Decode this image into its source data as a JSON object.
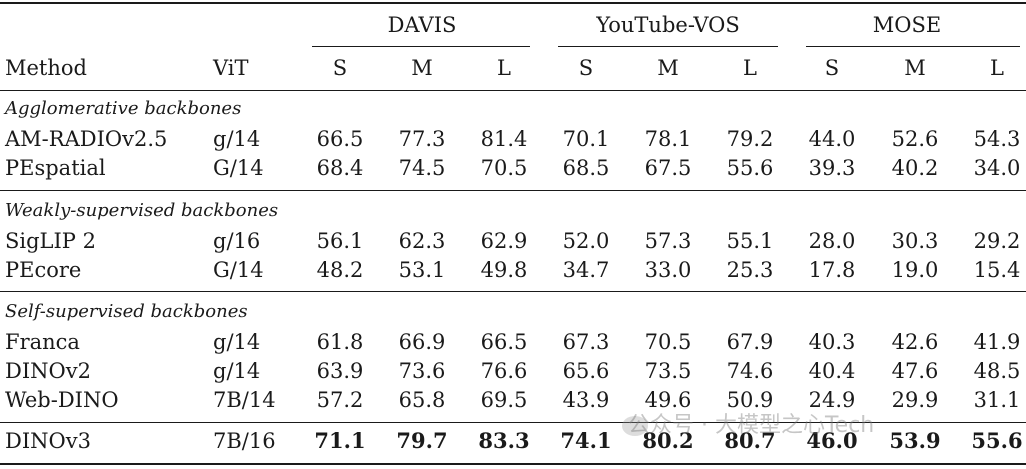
{
  "table": {
    "groups": [
      "DAVIS",
      "YouTube-VOS",
      "MOSE"
    ],
    "method_header": "Method",
    "vit_header": "ViT",
    "subcols": [
      "S",
      "M",
      "L",
      "S",
      "M",
      "L",
      "S",
      "M",
      "L"
    ],
    "sections": [
      {
        "title": "Agglomerative backbones",
        "rows": [
          {
            "method": "AM-RADIOv2.5",
            "vit": "g/14",
            "values": [
              "66.5",
              "77.3",
              "81.4",
              "70.1",
              "78.1",
              "79.2",
              "44.0",
              "52.6",
              "54.3"
            ]
          },
          {
            "method": "PEspatial",
            "vit": "G/14",
            "values": [
              "68.4",
              "74.5",
              "70.5",
              "68.5",
              "67.5",
              "55.6",
              "39.3",
              "40.2",
              "34.0"
            ]
          }
        ]
      },
      {
        "title": "Weakly-supervised backbones",
        "rows": [
          {
            "method": "SigLIP 2",
            "vit": "g/16",
            "values": [
              "56.1",
              "62.3",
              "62.9",
              "52.0",
              "57.3",
              "55.1",
              "28.0",
              "30.3",
              "29.2"
            ]
          },
          {
            "method": "PEcore",
            "vit": "G/14",
            "values": [
              "48.2",
              "53.1",
              "49.8",
              "34.7",
              "33.0",
              "25.3",
              "17.8",
              "19.0",
              "15.4"
            ]
          }
        ]
      },
      {
        "title": "Self-supervised backbones",
        "rows": [
          {
            "method": "Franca",
            "vit": "g/14",
            "values": [
              "61.8",
              "66.9",
              "66.5",
              "67.3",
              "70.5",
              "67.9",
              "40.3",
              "42.6",
              "41.9"
            ]
          },
          {
            "method": "DINOv2",
            "vit": "g/14",
            "values": [
              "63.9",
              "73.6",
              "76.6",
              "65.6",
              "73.5",
              "74.6",
              "40.4",
              "47.6",
              "48.5"
            ]
          },
          {
            "method": "Web-DINO",
            "vit": "7B/14",
            "values": [
              "57.2",
              "65.8",
              "69.5",
              "43.9",
              "49.6",
              "50.9",
              "24.9",
              "29.9",
              "31.1"
            ]
          }
        ]
      }
    ],
    "final_row": {
      "method": "DINOv3",
      "vit": "7B/16",
      "values": [
        "71.1",
        "79.7",
        "83.3",
        "74.1",
        "80.2",
        "80.7",
        "46.0",
        "53.9",
        "55.6"
      ]
    }
  },
  "watermark": "公众号 · 大模型之心Tech"
}
